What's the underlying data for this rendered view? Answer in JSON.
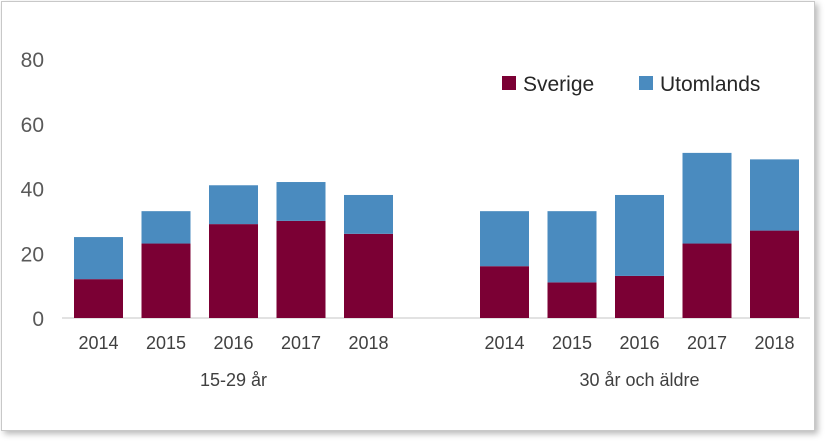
{
  "chart_data": {
    "type": "bar",
    "stacked": true,
    "ylim": [
      0,
      80
    ],
    "yticks": [
      0,
      20,
      40,
      60,
      80
    ],
    "grid": false,
    "legend_position": "top-right",
    "colors": {
      "Sverige": "#7b0034",
      "Utomlands": "#4a8bbf"
    },
    "groups": [
      {
        "label": "15-29 år",
        "categories": [
          "2014",
          "2015",
          "2016",
          "2017",
          "2018"
        ],
        "series": [
          {
            "name": "Sverige",
            "values": [
              12,
              23,
              29,
              30,
              26
            ]
          },
          {
            "name": "Utomlands",
            "values": [
              13,
              10,
              12,
              12,
              12
            ]
          }
        ]
      },
      {
        "label": "30 år och äldre",
        "categories": [
          "2014",
          "2015",
          "2016",
          "2017",
          "2018"
        ],
        "series": [
          {
            "name": "Sverige",
            "values": [
              16,
              11,
              13,
              23,
              27
            ]
          },
          {
            "name": "Utomlands",
            "values": [
              17,
              22,
              25,
              28,
              22
            ]
          }
        ]
      }
    ]
  },
  "legend": {
    "items": [
      {
        "name": "Sverige",
        "color": "#7b0034"
      },
      {
        "name": "Utomlands",
        "color": "#4a8bbf"
      }
    ]
  }
}
